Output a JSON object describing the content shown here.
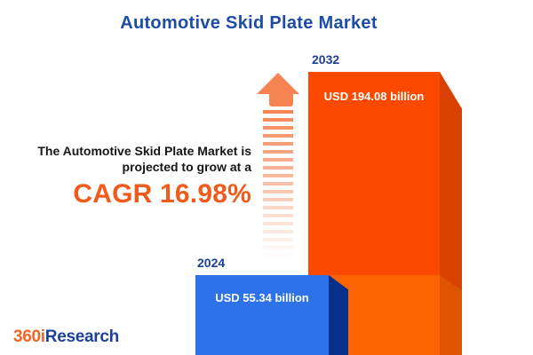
{
  "title": "Automotive Skid Plate Market",
  "tagline": {
    "line1": "The Automotive Skid Plate Market is",
    "line2": "projected to grow at a",
    "cagr_text": "CAGR 16.98%"
  },
  "chart_data": {
    "type": "bar",
    "title": "Automotive Skid Plate Market",
    "categories": [
      "2024",
      "2032"
    ],
    "values": [
      55.34,
      194.08
    ],
    "unit": "USD billion",
    "value_labels": [
      "USD 55.34 billion",
      "USD 194.08 billion"
    ],
    "cagr_percent": 16.98,
    "legend": false,
    "axes": "none (pictorial 3D cuboid bars, values labeled on bars)",
    "colors": {
      "bar_2024_front": "#2E72E9",
      "bar_2024_side": "#04308A",
      "bar_2032_front_upper": "#FB4A00",
      "bar_2032_front_lower": "#FB6300",
      "bar_2032_side_upper": "#D84100",
      "bar_2032_side_lower": "#DC5300",
      "growth_arrow": "#F68452",
      "cagr_orange": "#F05A1B",
      "title_blue": "#1C4BA8",
      "year_label_blue": "#1E3F97"
    }
  },
  "icons": {
    "growth_arrow": "striped-arrow-up"
  },
  "logo": {
    "prefix": "360i",
    "suffix": "Research",
    "prefix_color": "#F26522",
    "suffix_color": "#1F419B"
  }
}
